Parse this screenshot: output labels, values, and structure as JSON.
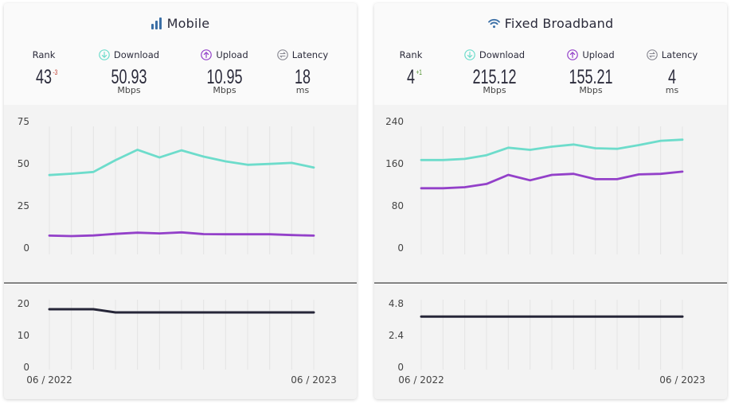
{
  "cards": [
    {
      "title": "Mobile",
      "icon": "signal-bars-icon",
      "metrics": {
        "rank": {
          "label": "Rank",
          "value": "43",
          "change": "-3",
          "change_color": "#c0392b"
        },
        "download": {
          "label": "Download",
          "value": "50.93",
          "unit": "Mbps"
        },
        "upload": {
          "label": "Upload",
          "value": "10.95",
          "unit": "Mbps"
        },
        "latency": {
          "label": "Latency",
          "value": "18",
          "unit": "ms"
        }
      }
    },
    {
      "title": "Fixed Broadband",
      "icon": "wifi-icon",
      "metrics": {
        "rank": {
          "label": "Rank",
          "value": "4",
          "change": "+1",
          "change_color": "#4b8f29"
        },
        "download": {
          "label": "Download",
          "value": "215.12",
          "unit": "Mbps"
        },
        "upload": {
          "label": "Upload",
          "value": "155.21",
          "unit": "Mbps"
        },
        "latency": {
          "label": "Latency",
          "value": "4",
          "unit": "ms"
        }
      }
    }
  ],
  "colors": {
    "download": "#6ddccb",
    "upload": "#9340c9",
    "latency": "#262638",
    "latency_icon": "#8a8a94",
    "title_icon": "#3b6fa6"
  },
  "chart_data": [
    {
      "type": "line",
      "panel": "Mobile speed",
      "x": [
        "06 / 2022",
        "07 / 2022",
        "08 / 2022",
        "09 / 2022",
        "10 / 2022",
        "11 / 2022",
        "12 / 2022",
        "01 / 2023",
        "02 / 2023",
        "03 / 2023",
        "04 / 2023",
        "05 / 2023",
        "06 / 2023"
      ],
      "xticks": [
        "06 / 2022",
        "06 / 2023"
      ],
      "yticks": [
        "75",
        "50",
        "25",
        "0"
      ],
      "ylim": [
        0,
        75
      ],
      "series": [
        {
          "key": "download",
          "values": [
            46.5,
            47.3,
            48.3,
            55.2,
            61.3,
            56.8,
            61.0,
            57.3,
            54.5,
            52.5,
            53.0,
            53.6,
            50.9
          ]
        },
        {
          "key": "upload",
          "values": [
            11.0,
            10.7,
            11.1,
            12.0,
            12.7,
            12.3,
            12.9,
            11.9,
            11.8,
            11.8,
            11.8,
            11.3,
            11.0
          ]
        }
      ]
    },
    {
      "type": "line",
      "panel": "Mobile latency",
      "x": [
        "06 / 2022",
        "07 / 2022",
        "08 / 2022",
        "09 / 2022",
        "10 / 2022",
        "11 / 2022",
        "12 / 2022",
        "01 / 2023",
        "02 / 2023",
        "03 / 2023",
        "04 / 2023",
        "05 / 2023",
        "06 / 2023"
      ],
      "yticks": [
        "20",
        "10",
        "0"
      ],
      "ylim": [
        0,
        20
      ],
      "series": [
        {
          "key": "latency",
          "values": [
            19,
            19,
            19,
            18,
            18,
            18,
            18,
            18,
            18,
            18,
            18,
            18,
            18
          ]
        }
      ]
    },
    {
      "type": "line",
      "panel": "Fixed Broadband speed",
      "x": [
        "06 / 2022",
        "07 / 2022",
        "08 / 2022",
        "09 / 2022",
        "10 / 2022",
        "11 / 2022",
        "12 / 2022",
        "01 / 2023",
        "02 / 2023",
        "03 / 2023",
        "04 / 2023",
        "05 / 2023",
        "06 / 2023"
      ],
      "xticks": [
        "06 / 2022",
        "06 / 2023"
      ],
      "yticks": [
        "240",
        "160",
        "80",
        "0"
      ],
      "ylim": [
        0,
        240
      ],
      "series": [
        {
          "key": "download",
          "values": [
            177,
            177,
            179,
            186,
            200,
            196,
            202,
            206,
            199,
            198,
            205,
            213,
            215.1
          ]
        },
        {
          "key": "upload",
          "values": [
            124,
            124,
            126,
            132,
            149,
            139,
            149,
            151,
            141,
            141,
            150,
            151,
            155.2
          ]
        }
      ]
    },
    {
      "type": "line",
      "panel": "Fixed Broadband latency",
      "x": [
        "06 / 2022",
        "07 / 2022",
        "08 / 2022",
        "09 / 2022",
        "10 / 2022",
        "11 / 2022",
        "12 / 2022",
        "01 / 2023",
        "02 / 2023",
        "03 / 2023",
        "04 / 2023",
        "05 / 2023",
        "06 / 2023"
      ],
      "yticks": [
        "4.8",
        "2.4",
        "0"
      ],
      "ylim": [
        0,
        4.8
      ],
      "series": [
        {
          "key": "latency",
          "values": [
            4,
            4,
            4,
            4,
            4,
            4,
            4,
            4,
            4,
            4,
            4,
            4,
            4
          ]
        }
      ]
    }
  ]
}
